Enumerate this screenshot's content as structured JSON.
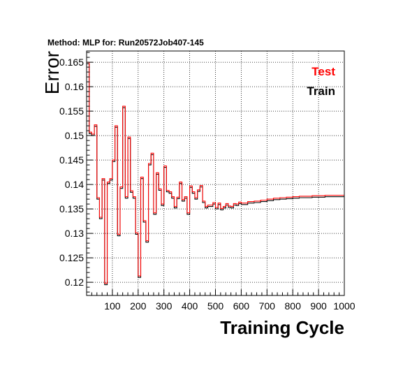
{
  "chart_data": {
    "type": "line",
    "step": true,
    "title": "Method: MLP for: Run20572Job407-145",
    "xlabel": "Training Cycle",
    "ylabel": "Error",
    "xlim": [
      0,
      1000
    ],
    "ylim": [
      0.1173,
      0.1673
    ],
    "grid": true,
    "legend_position": "top-right",
    "x_ticks": [
      100,
      200,
      300,
      400,
      500,
      600,
      700,
      800,
      900,
      1000
    ],
    "y_ticks": [
      0.12,
      0.125,
      0.13,
      0.135,
      0.14,
      0.145,
      0.15,
      0.155,
      0.16,
      0.165
    ],
    "y_tick_labels": [
      "0.12",
      "0.125",
      "0.13",
      "0.135",
      "0.14",
      "0.145",
      "0.15",
      "0.155",
      "0.16",
      "0.165"
    ],
    "x_tick_labels": [
      "100",
      "200",
      "300",
      "400",
      "500",
      "600",
      "700",
      "800",
      "900",
      "1000"
    ],
    "bin_edges": [
      0,
      10,
      20,
      30,
      40,
      50,
      60,
      70,
      80,
      90,
      100,
      110,
      120,
      130,
      140,
      150,
      160,
      170,
      180,
      190,
      200,
      210,
      220,
      230,
      240,
      250,
      260,
      270,
      280,
      290,
      300,
      310,
      320,
      330,
      340,
      350,
      360,
      370,
      380,
      390,
      400,
      410,
      420,
      430,
      440,
      450,
      460,
      470,
      480,
      490,
      500,
      510,
      520,
      530,
      540,
      550,
      560,
      570,
      580,
      590,
      600,
      625,
      650,
      675,
      700,
      725,
      750,
      775,
      800,
      825,
      850,
      875,
      900,
      925,
      950,
      975,
      1000
    ],
    "series": [
      {
        "name": "Train",
        "color": "#000000",
        "values": [
          0.1647,
          0.1504,
          0.15,
          0.1519,
          0.137,
          0.133,
          0.1409,
          0.1195,
          0.1402,
          0.1409,
          0.1447,
          0.1517,
          0.1295,
          0.1392,
          0.1557,
          0.1372,
          0.1494,
          0.1384,
          0.1372,
          0.1298,
          0.121,
          0.1412,
          0.1323,
          0.1282,
          0.144,
          0.1461,
          0.1339,
          0.1421,
          0.1388,
          0.1357,
          0.1435,
          0.1385,
          0.1382,
          0.1372,
          0.1352,
          0.1371,
          0.1402,
          0.1366,
          0.1372,
          0.1339,
          0.1394,
          0.1382,
          0.137,
          0.1386,
          0.1395,
          0.1363,
          0.1352,
          0.1355,
          0.1355,
          0.136,
          0.135,
          0.1359,
          0.1348,
          0.1352,
          0.1358,
          0.1353,
          0.1352,
          0.1358,
          0.1357,
          0.1361,
          0.1359,
          0.1362,
          0.1363,
          0.1365,
          0.1367,
          0.1369,
          0.137,
          0.1371,
          0.1372,
          0.1373,
          0.1373,
          0.1374,
          0.1374,
          0.1375,
          0.1375,
          0.1375
        ]
      },
      {
        "name": "Test",
        "color": "#ff0000",
        "values": [
          0.165,
          0.1507,
          0.1503,
          0.1522,
          0.1373,
          0.1333,
          0.1412,
          0.1198,
          0.1405,
          0.1412,
          0.145,
          0.152,
          0.1298,
          0.1395,
          0.156,
          0.1375,
          0.1497,
          0.1387,
          0.1375,
          0.1301,
          0.1213,
          0.1415,
          0.1326,
          0.1285,
          0.1443,
          0.1464,
          0.1342,
          0.1424,
          0.1391,
          0.136,
          0.1438,
          0.1388,
          0.1385,
          0.1375,
          0.1355,
          0.1374,
          0.1405,
          0.1369,
          0.1375,
          0.1342,
          0.1397,
          0.1385,
          0.1373,
          0.1389,
          0.1398,
          0.1366,
          0.1355,
          0.1358,
          0.1358,
          0.1363,
          0.1353,
          0.1362,
          0.1351,
          0.1355,
          0.1361,
          0.1356,
          0.1355,
          0.1361,
          0.136,
          0.1364,
          0.1362,
          0.1365,
          0.1366,
          0.1368,
          0.137,
          0.1372,
          0.1373,
          0.1374,
          0.1375,
          0.1376,
          0.1376,
          0.1377,
          0.1377,
          0.1378,
          0.1378,
          0.1378
        ]
      }
    ]
  }
}
